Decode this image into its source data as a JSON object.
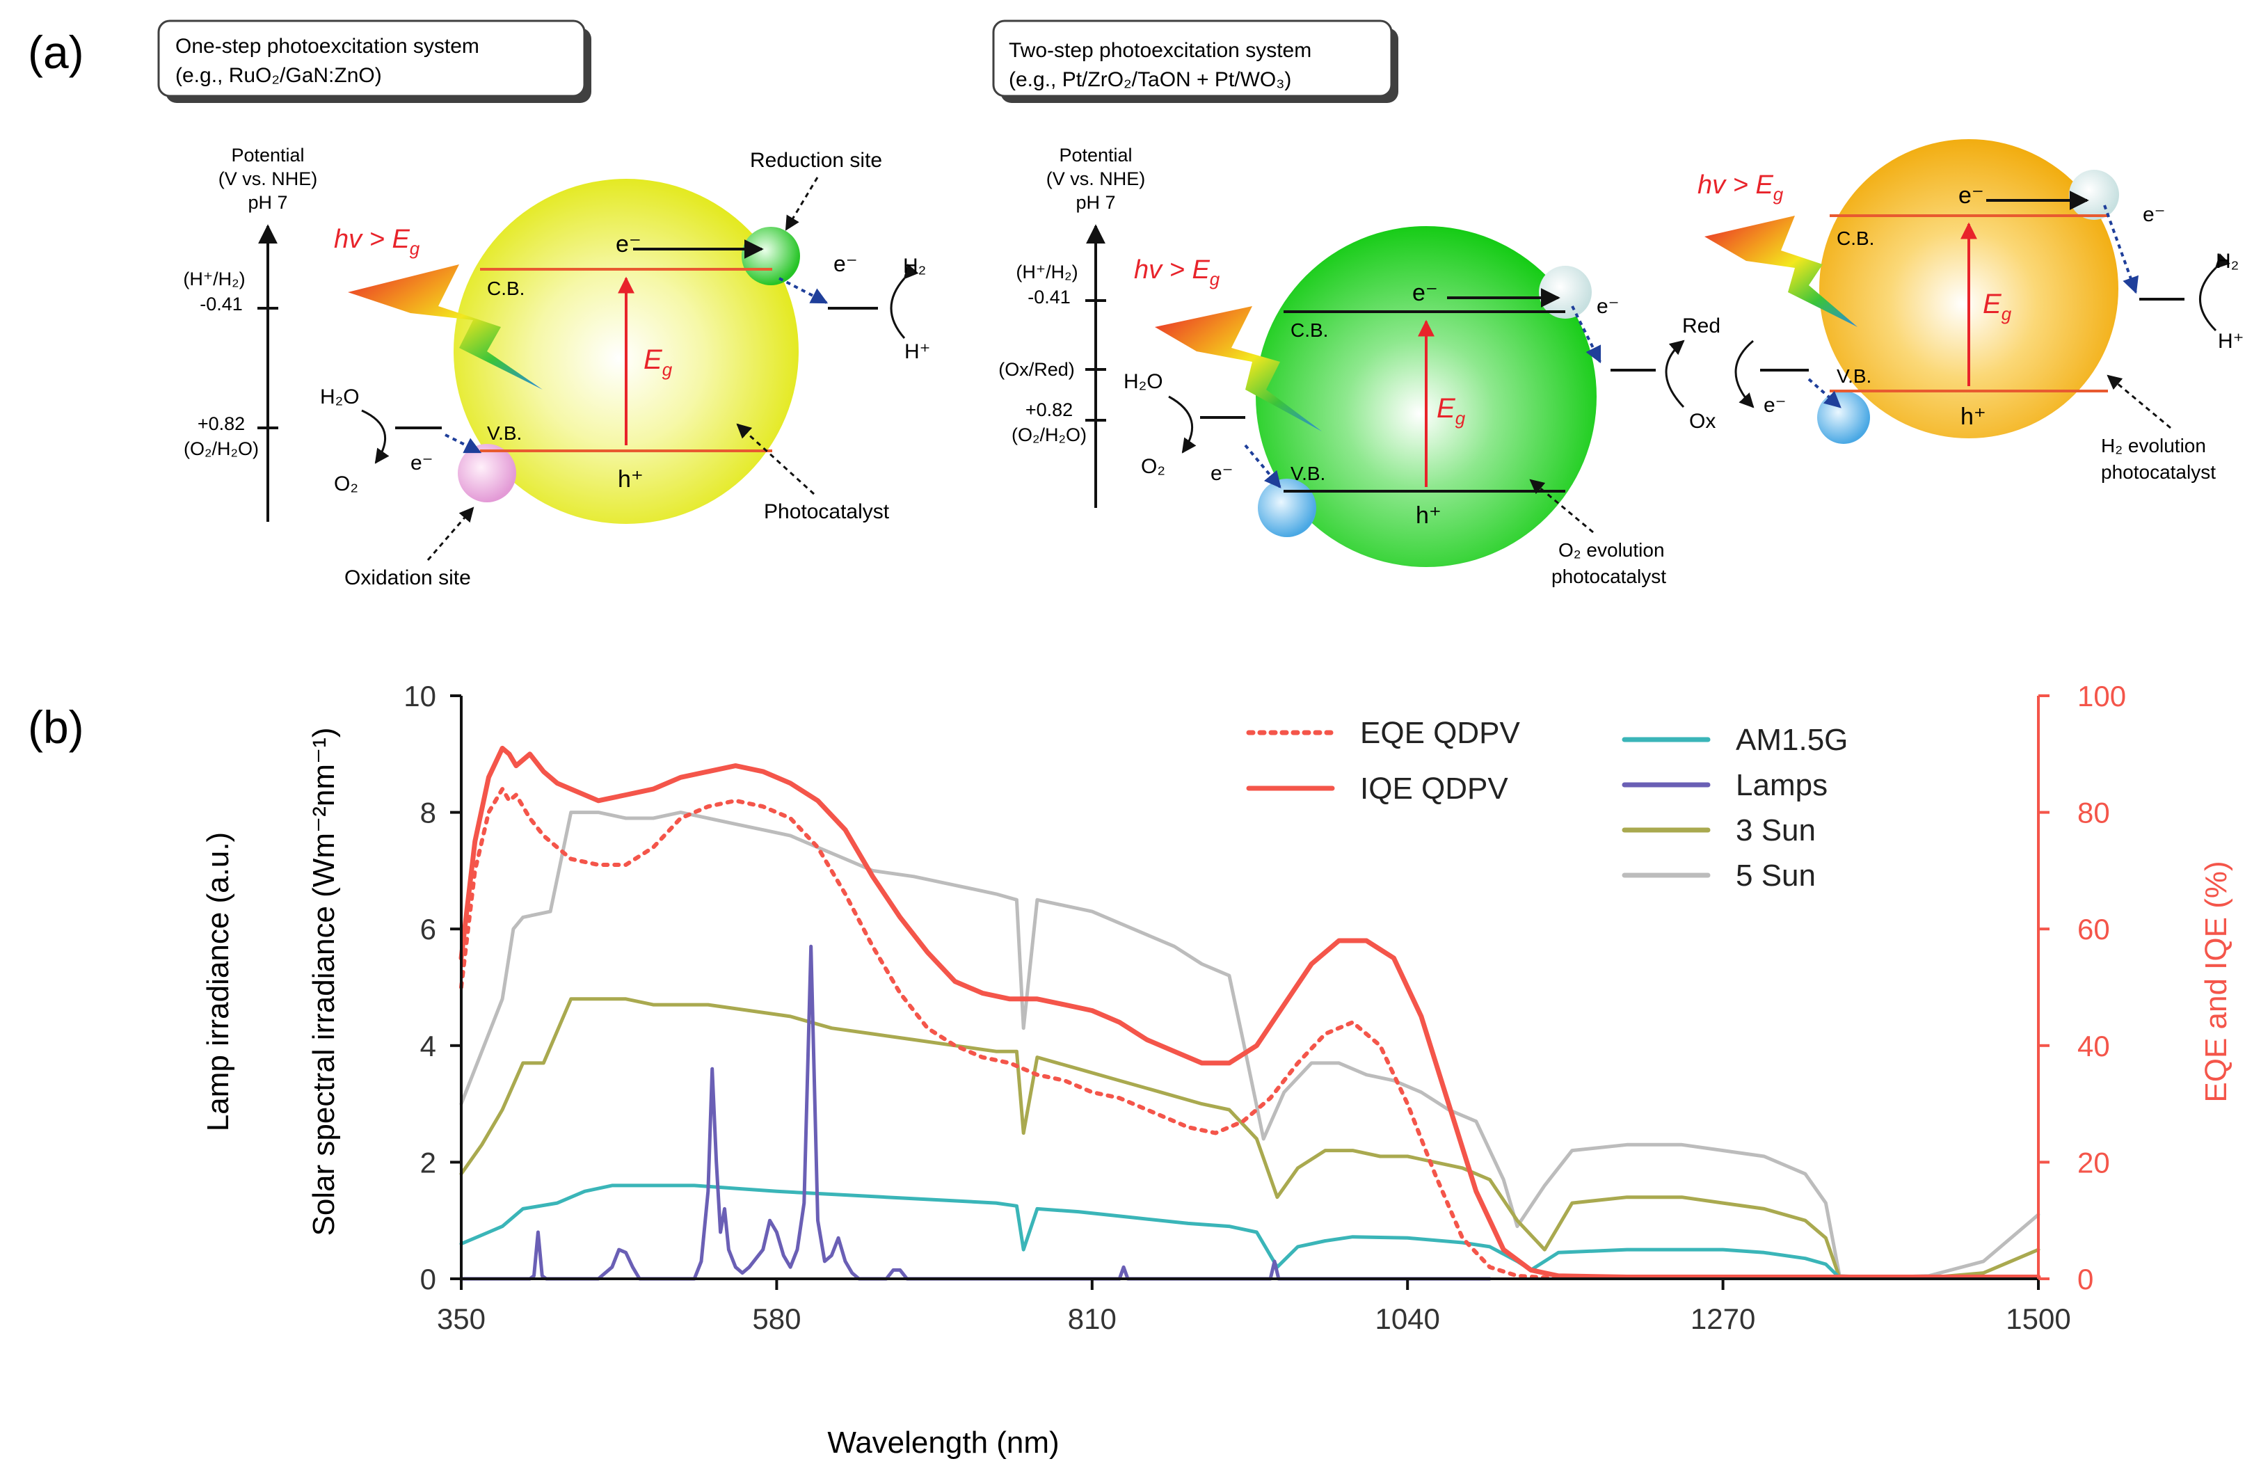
{
  "panel_a": {
    "label": "(a)",
    "box1": {
      "line1": "One-step photoexcitation system",
      "line2": "(e.g., RuO₂/GaN:ZnO)"
    },
    "box2": {
      "line1": "Two-step photoexcitation system",
      "line2": "(e.g., Pt/ZrO₂/TaON + Pt/WO₃)"
    },
    "axis": {
      "title1": "Potential",
      "title2": "(V vs. NHE)",
      "title3": "pH 7",
      "h_couple": "(H⁺/H₂)",
      "h_value": "-0.41",
      "o_value": "+0.82",
      "o_couple": "(O₂/H₂O)",
      "oxred": "(Ox/Red)"
    },
    "light": "hv > E",
    "light_sub": "g",
    "eg": "E",
    "eg_sub": "g",
    "cb": "C.B.",
    "vb": "V.B.",
    "electron": "e⁻",
    "hole": "h⁺",
    "h2": "H₂",
    "hplus": "H⁺",
    "h2o": "H₂O",
    "o2": "O₂",
    "red": "Red",
    "ox": "Ox",
    "reduction_site": "Reduction site",
    "oxidation_site": "Oxidation site",
    "photocatalyst": "Photocatalyst",
    "o2_evolution_1": "O₂ evolution",
    "o2_evolution_2": "photocatalyst",
    "h2_evolution_1": "H₂ evolution",
    "h2_evolution_2": "photocatalyst",
    "colors": {
      "yellow": "#e8ee1c",
      "green": "#1ed21e",
      "orange": "#f5b21a",
      "band": "#e85a30",
      "red_text": "#e8232a"
    }
  },
  "chart_data": {
    "type": "line",
    "panel_label": "(b)",
    "xlabel": "Wavelength (nm)",
    "ylabel_left_1": "Lamp irradiance (a.u.)",
    "ylabel_left_2": "Solar spectral irradiance (Wm⁻²nm⁻¹)",
    "ylabel_right": "EQE and IQE (%)",
    "xlim": [
      350,
      1500
    ],
    "ylim_left": [
      0,
      10
    ],
    "ylim_right": [
      0,
      100
    ],
    "x_ticks": [
      "350",
      "580",
      "810",
      "1040",
      "1270",
      "1500"
    ],
    "y_ticks_left": [
      "0",
      "2",
      "4",
      "6",
      "8",
      "10"
    ],
    "y_ticks_right": [
      "0",
      "20",
      "40",
      "60",
      "80",
      "100"
    ],
    "grid": false,
    "legend": [
      {
        "name": "EQE QDPV",
        "color": "#f4554a",
        "dash": true
      },
      {
        "name": "IQE  QDPV",
        "color": "#f4554a",
        "dash": false
      },
      {
        "name": "AM1.5G",
        "color": "#3ab5b8",
        "dash": false
      },
      {
        "name": "Lamps",
        "color": "#6a5fb5",
        "dash": false
      },
      {
        "name": "3 Sun",
        "color": "#a9a94f",
        "dash": false
      },
      {
        "name": "5 Sun",
        "color": "#bcbcbc",
        "dash": false
      }
    ],
    "series": [
      {
        "name": "5 Sun",
        "axis": "left",
        "color": "#bcbcbc",
        "width": 5,
        "x": [
          350,
          365,
          380,
          388,
          395,
          415,
          430,
          450,
          470,
          490,
          510,
          530,
          550,
          570,
          590,
          610,
          630,
          650,
          680,
          700,
          720,
          740,
          755,
          760,
          770,
          790,
          810,
          830,
          850,
          870,
          890,
          910,
          920,
          935,
          950,
          970,
          990,
          1010,
          1030,
          1050,
          1070,
          1090,
          1110,
          1120,
          1140,
          1160,
          1200,
          1240,
          1270,
          1300,
          1330,
          1345,
          1355,
          1380,
          1420,
          1460,
          1500
        ],
        "y": [
          3.0,
          3.9,
          4.8,
          6.0,
          6.2,
          6.3,
          8.0,
          8.0,
          7.9,
          7.9,
          8.0,
          7.9,
          7.8,
          7.7,
          7.6,
          7.4,
          7.2,
          7.0,
          6.9,
          6.8,
          6.7,
          6.6,
          6.5,
          4.3,
          6.5,
          6.4,
          6.3,
          6.1,
          5.9,
          5.7,
          5.4,
          5.2,
          4.1,
          2.4,
          3.2,
          3.7,
          3.7,
          3.5,
          3.4,
          3.2,
          2.9,
          2.7,
          1.7,
          0.9,
          1.6,
          2.2,
          2.3,
          2.3,
          2.2,
          2.1,
          1.8,
          1.3,
          0.05,
          0.02,
          0.05,
          0.3,
          1.1
        ]
      },
      {
        "name": "3 Sun",
        "axis": "left",
        "color": "#a9a94f",
        "width": 5,
        "x": [
          350,
          365,
          380,
          395,
          410,
          430,
          450,
          470,
          490,
          510,
          530,
          560,
          590,
          620,
          650,
          680,
          710,
          740,
          755,
          760,
          770,
          800,
          830,
          860,
          890,
          910,
          930,
          945,
          960,
          980,
          1000,
          1020,
          1040,
          1060,
          1080,
          1100,
          1120,
          1140,
          1160,
          1200,
          1240,
          1270,
          1300,
          1330,
          1345,
          1355,
          1380,
          1420,
          1460,
          1500
        ],
        "y": [
          1.8,
          2.3,
          2.9,
          3.7,
          3.7,
          4.8,
          4.8,
          4.8,
          4.7,
          4.7,
          4.7,
          4.6,
          4.5,
          4.3,
          4.2,
          4.1,
          4.0,
          3.9,
          3.9,
          2.5,
          3.8,
          3.6,
          3.4,
          3.2,
          3.0,
          2.9,
          2.4,
          1.4,
          1.9,
          2.2,
          2.2,
          2.1,
          2.1,
          2.0,
          1.9,
          1.7,
          1.0,
          0.5,
          1.3,
          1.4,
          1.4,
          1.3,
          1.2,
          1.0,
          0.7,
          0.02,
          0.02,
          0.02,
          0.1,
          0.5
        ]
      },
      {
        "name": "AM1.5G",
        "axis": "left",
        "color": "#3ab5b8",
        "width": 5,
        "x": [
          350,
          370,
          380,
          395,
          420,
          440,
          460,
          490,
          520,
          550,
          580,
          620,
          660,
          700,
          740,
          755,
          760,
          770,
          800,
          840,
          880,
          910,
          930,
          945,
          960,
          980,
          1000,
          1040,
          1080,
          1100,
          1120,
          1130,
          1150,
          1200,
          1240,
          1270,
          1300,
          1330,
          1345,
          1355,
          1400,
          1500
        ],
        "y": [
          0.6,
          0.8,
          0.9,
          1.2,
          1.3,
          1.5,
          1.6,
          1.6,
          1.6,
          1.55,
          1.5,
          1.45,
          1.4,
          1.35,
          1.3,
          1.25,
          0.5,
          1.2,
          1.15,
          1.05,
          0.95,
          0.9,
          0.8,
          0.2,
          0.55,
          0.65,
          0.72,
          0.7,
          0.62,
          0.55,
          0.3,
          0.15,
          0.45,
          0.5,
          0.5,
          0.5,
          0.45,
          0.35,
          0.25,
          0.02,
          0.02,
          0.02
        ]
      },
      {
        "name": "Lamps",
        "axis": "left",
        "color": "#6a5fb5",
        "width": 5,
        "x": [
          350,
          400,
          403,
          406,
          409,
          412,
          450,
          460,
          465,
          470,
          475,
          480,
          520,
          525,
          530,
          533,
          536,
          539,
          542,
          545,
          550,
          555,
          560,
          570,
          575,
          580,
          585,
          590,
          595,
          600,
          605,
          610,
          615,
          620,
          625,
          630,
          635,
          640,
          660,
          665,
          670,
          675,
          680,
          700,
          720,
          740,
          760,
          780,
          800,
          820,
          830,
          833,
          836,
          850,
          880,
          930,
          940,
          943,
          946,
          960,
          1000,
          1040,
          1090,
          1100
        ],
        "y": [
          0.0,
          0.0,
          0.05,
          0.8,
          0.05,
          0.0,
          0.0,
          0.2,
          0.5,
          0.45,
          0.2,
          0.0,
          0.0,
          0.3,
          1.5,
          3.6,
          2.0,
          0.8,
          1.2,
          0.5,
          0.2,
          0.1,
          0.2,
          0.5,
          1.0,
          0.8,
          0.4,
          0.2,
          0.5,
          1.3,
          5.7,
          1.0,
          0.3,
          0.4,
          0.7,
          0.3,
          0.1,
          0.0,
          0.0,
          0.15,
          0.15,
          0.0,
          0.0,
          0.0,
          0.0,
          0.0,
          0.0,
          0.0,
          0.0,
          0.0,
          0.0,
          0.2,
          0.0,
          0.0,
          0.0,
          0.0,
          0.0,
          0.3,
          0.0,
          0.0,
          0.0,
          0.0,
          0.0,
          0.0
        ]
      },
      {
        "name": "EQE QDPV",
        "axis": "right",
        "color": "#f4554a",
        "width": 6,
        "dash": true,
        "x": [
          350,
          360,
          370,
          380,
          385,
          390,
          400,
          410,
          420,
          430,
          450,
          470,
          490,
          510,
          530,
          550,
          570,
          590,
          610,
          630,
          650,
          670,
          690,
          710,
          730,
          750,
          770,
          790,
          810,
          830,
          850,
          870,
          880,
          900,
          920,
          940,
          960,
          980,
          1000,
          1020,
          1040,
          1060,
          1080,
          1100,
          1120,
          1140,
          1160,
          1200,
          1240,
          1280,
          1320,
          1350,
          1400,
          1450,
          1500
        ],
        "y": [
          50,
          70,
          80,
          84,
          82,
          83,
          79,
          76,
          74,
          72,
          71,
          71,
          74,
          79,
          81,
          82,
          81,
          79,
          74,
          66,
          57,
          49,
          43,
          40,
          38,
          37,
          35,
          34,
          32,
          31,
          29,
          27,
          26,
          25,
          27,
          31,
          37,
          42,
          44,
          40,
          30,
          18,
          7,
          2,
          0.5,
          0.2,
          0.2,
          0.2,
          0.2,
          0.2,
          0.2,
          0.2,
          0.2,
          0.2,
          0.2
        ]
      },
      {
        "name": "IQE  QDPV",
        "axis": "right",
        "color": "#f4554a",
        "width": 7,
        "dash": false,
        "x": [
          350,
          360,
          370,
          380,
          385,
          390,
          400,
          410,
          420,
          430,
          450,
          470,
          490,
          510,
          530,
          550,
          570,
          590,
          610,
          630,
          650,
          670,
          690,
          710,
          730,
          750,
          770,
          790,
          810,
          830,
          850,
          870,
          890,
          910,
          930,
          950,
          970,
          990,
          1010,
          1030,
          1050,
          1070,
          1090,
          1110,
          1130,
          1150,
          1200,
          1250,
          1300,
          1350,
          1400,
          1450,
          1500
        ],
        "y": [
          55,
          75,
          86,
          91,
          90,
          88,
          90,
          87,
          85,
          84,
          82,
          83,
          84,
          86,
          87,
          88,
          87,
          85,
          82,
          77,
          69,
          62,
          56,
          51,
          49,
          48,
          48,
          47,
          46,
          44,
          41,
          39,
          37,
          37,
          40,
          47,
          54,
          58,
          58,
          55,
          45,
          30,
          15,
          5,
          1.5,
          0.5,
          0.3,
          0.3,
          0.3,
          0.3,
          0.3,
          0.3,
          0.3
        ]
      }
    ]
  }
}
